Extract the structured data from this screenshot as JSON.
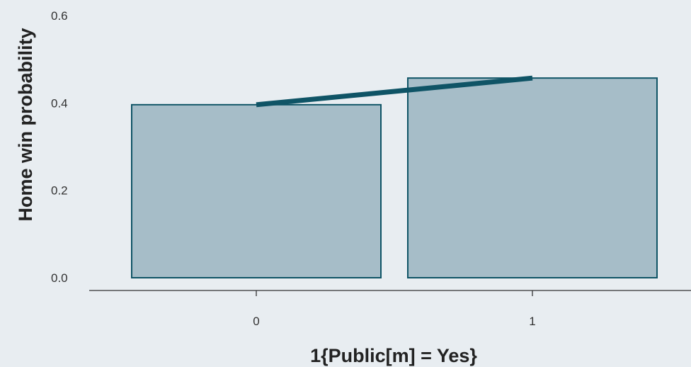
{
  "chart_data": {
    "type": "bar",
    "categories": [
      "0",
      "1"
    ],
    "values": [
      0.396,
      0.457
    ],
    "xlabel": "1{Public[m] = Yes}",
    "ylabel": "Home win probability",
    "ylim": [
      0,
      0.6
    ],
    "yticks": [
      "0.0",
      "0.2",
      "0.4",
      "0.6"
    ],
    "overlay_line": {
      "type": "line",
      "x": [
        "0",
        "1"
      ],
      "y": [
        0.396,
        0.457
      ]
    },
    "grid": false,
    "legend": "none",
    "colors": {
      "background": "#e8edf1",
      "bar_fill": "#a6bdc8",
      "bar_stroke": "#0f5466",
      "line": "#0f5466",
      "axis": "#333333"
    }
  }
}
